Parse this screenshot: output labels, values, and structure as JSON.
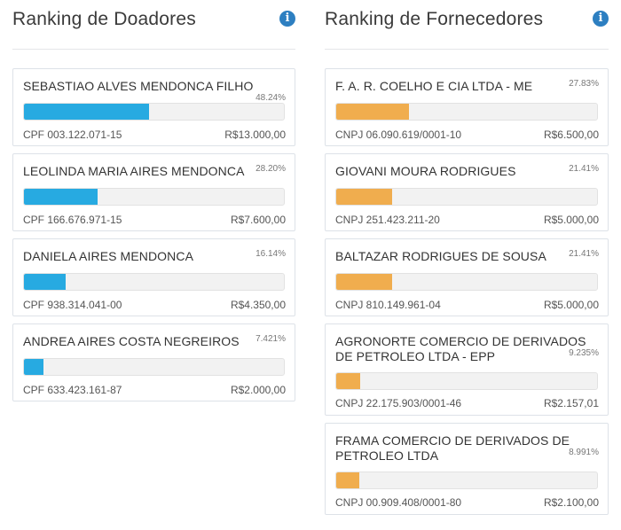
{
  "doadores": {
    "title": "Ranking de Doadores",
    "info_icon": "info-circle-icon",
    "bar_color": "#27aae1",
    "items": [
      {
        "name": "SEBASTIAO ALVES MENDONCA FILHO",
        "percent_label": "48.24%",
        "share": 48.24,
        "doc": "CPF 003.122.071-15",
        "value": "R$13.000,00"
      },
      {
        "name": "LEOLINDA MARIA AIRES MENDONCA",
        "percent_label": "28.20%",
        "share": 28.2,
        "doc": "CPF 166.676.971-15",
        "value": "R$7.600,00"
      },
      {
        "name": "DANIELA AIRES MENDONCA",
        "percent_label": "16.14%",
        "share": 16.14,
        "doc": "CPF 938.314.041-00",
        "value": "R$4.350,00"
      },
      {
        "name": "ANDREA AIRES COSTA NEGREIROS",
        "percent_label": "7.421%",
        "share": 7.421,
        "doc": "CPF 633.423.161-87",
        "value": "R$2.000,00"
      }
    ]
  },
  "fornecedores": {
    "title": "Ranking de Fornecedores",
    "info_icon": "info-circle-icon",
    "bar_color": "#f0ad4e",
    "items": [
      {
        "name": "F. A. R. COELHO E CIA LTDA - ME",
        "percent_label": "27.83%",
        "share": 27.83,
        "doc": "CNPJ 06.090.619/0001-10",
        "value": "R$6.500,00"
      },
      {
        "name": "GIOVANI MOURA RODRIGUES",
        "percent_label": "21.41%",
        "share": 21.41,
        "doc": "CNPJ 251.423.211-20",
        "value": "R$5.000,00"
      },
      {
        "name": "BALTAZAR RODRIGUES DE SOUSA",
        "percent_label": "21.41%",
        "share": 21.41,
        "doc": "CNPJ 810.149.961-04",
        "value": "R$5.000,00"
      },
      {
        "name": "AGRONORTE COMERCIO DE DERIVADOS DE PETROLEO LTDA - EPP",
        "percent_label": "9.235%",
        "share": 9.235,
        "doc": "CNPJ 22.175.903/0001-46",
        "value": "R$2.157,01"
      },
      {
        "name": "FRAMA COMERCIO DE DERIVADOS DE PETROLEO LTDA",
        "percent_label": "8.991%",
        "share": 8.991,
        "doc": "CNPJ 00.909.408/0001-80",
        "value": "R$2.100,00"
      }
    ]
  }
}
